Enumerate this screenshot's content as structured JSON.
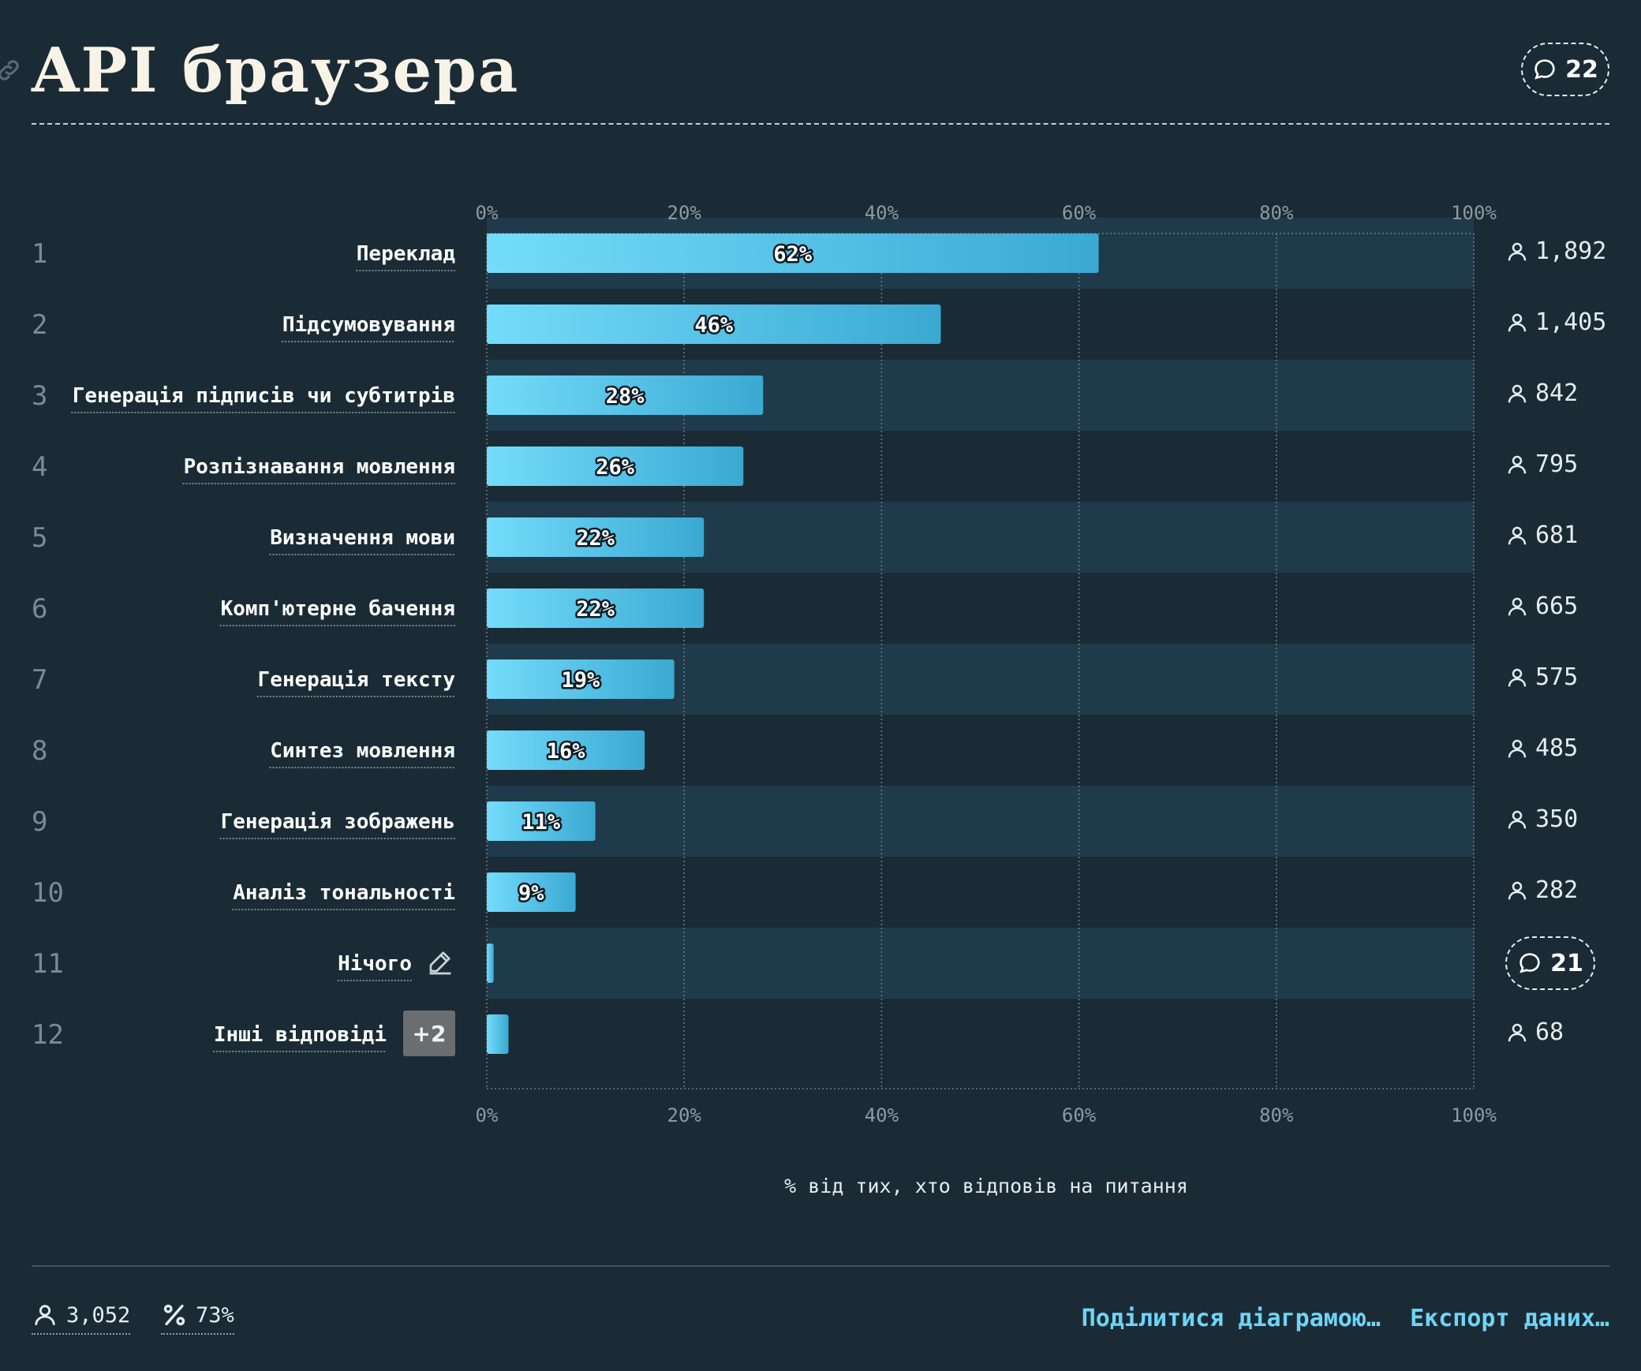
{
  "header": {
    "title": "API браузера",
    "comments_count": "22"
  },
  "colors": {
    "background": "#1b2b35",
    "row_band": "#1f3a4b",
    "bar_start": "#74dcfb",
    "bar_end": "#3aa9d2",
    "accent_link": "#6fd4f6",
    "tag_bg": "#6b6e70"
  },
  "chart_data": {
    "type": "bar",
    "orientation": "horizontal",
    "xlim": [
      0,
      100
    ],
    "x_ticks": [
      "0%",
      "20%",
      "40%",
      "60%",
      "80%",
      "100%"
    ],
    "xlabel": "% від тих, хто відповів на питання",
    "grid": true,
    "categories": [
      "Переклад",
      "Підсумовування",
      "Генерація підписів чи субтитрів",
      "Розпізнавання мовлення",
      "Визначення мови",
      "Комп'ютерне бачення",
      "Генерація тексту",
      "Синтез мовлення",
      "Генерація зображень",
      "Аналіз тональності",
      "Нічого",
      "Інші відповіді"
    ],
    "ranks": [
      "1",
      "2",
      "3",
      "4",
      "5",
      "6",
      "7",
      "8",
      "9",
      "10",
      "11",
      "12"
    ],
    "values": [
      62,
      46,
      28,
      26,
      22,
      22,
      19,
      16,
      11,
      9,
      0.7,
      2.2
    ],
    "value_labels": [
      "62%",
      "46%",
      "28%",
      "26%",
      "22%",
      "22%",
      "19%",
      "16%",
      "11%",
      "9%",
      "",
      ""
    ],
    "respondent_counts": [
      "1,892",
      "1,405",
      "842",
      "795",
      "681",
      "665",
      "575",
      "485",
      "350",
      "282",
      "",
      "68"
    ],
    "row_11_comments": "21",
    "row_12_tag": "+2"
  },
  "footer": {
    "respondents": "3,052",
    "response_rate": "73%",
    "share_label": "Поділитися діаграмою…",
    "export_label": "Експорт даних…"
  }
}
